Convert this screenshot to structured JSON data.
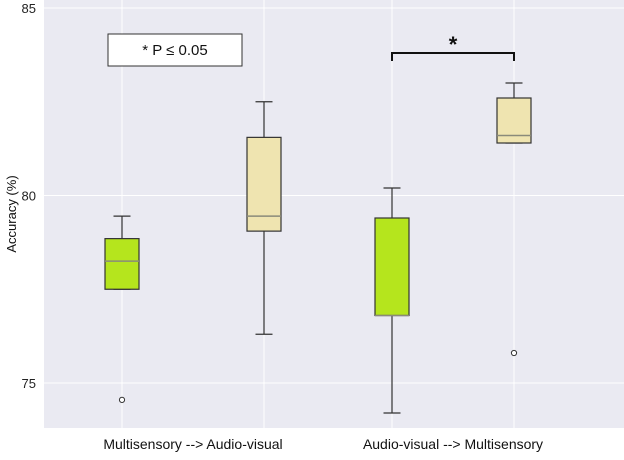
{
  "chart_data": {
    "type": "box",
    "title": "",
    "xlabel": "",
    "ylabel": "Accuracy (%)",
    "ylim": [
      73.8,
      85.0
    ],
    "yticks": [
      75,
      80,
      85
    ],
    "grid": true,
    "categories": [
      "Multisensory --> Audio-visual",
      "Audio-visual --> Multisensory"
    ],
    "series": [
      {
        "color": "#b5e51d",
        "boxes": [
          {
            "whisker_low": 77.5,
            "q1": 77.5,
            "median": 78.25,
            "q3": 78.85,
            "whisker_high": 79.45,
            "outliers": [
              74.55
            ]
          },
          {
            "whisker_low": 74.2,
            "q1": 76.8,
            "median": 76.8,
            "q3": 79.4,
            "whisker_high": 80.2,
            "outliers": []
          }
        ]
      },
      {
        "color": "#efe4b0",
        "boxes": [
          {
            "whisker_low": 76.3,
            "q1": 79.05,
            "median": 79.45,
            "q3": 81.55,
            "whisker_high": 82.5,
            "outliers": []
          },
          {
            "whisker_low": 81.4,
            "q1": 81.4,
            "median": 81.6,
            "q3": 82.6,
            "whisker_high": 83.0,
            "outliers": [
              75.8
            ]
          }
        ]
      }
    ],
    "significance": {
      "category_index": 1,
      "marker": "*"
    },
    "legend": {
      "text": "*    P ≤ 0.05",
      "position": "top-left"
    }
  }
}
